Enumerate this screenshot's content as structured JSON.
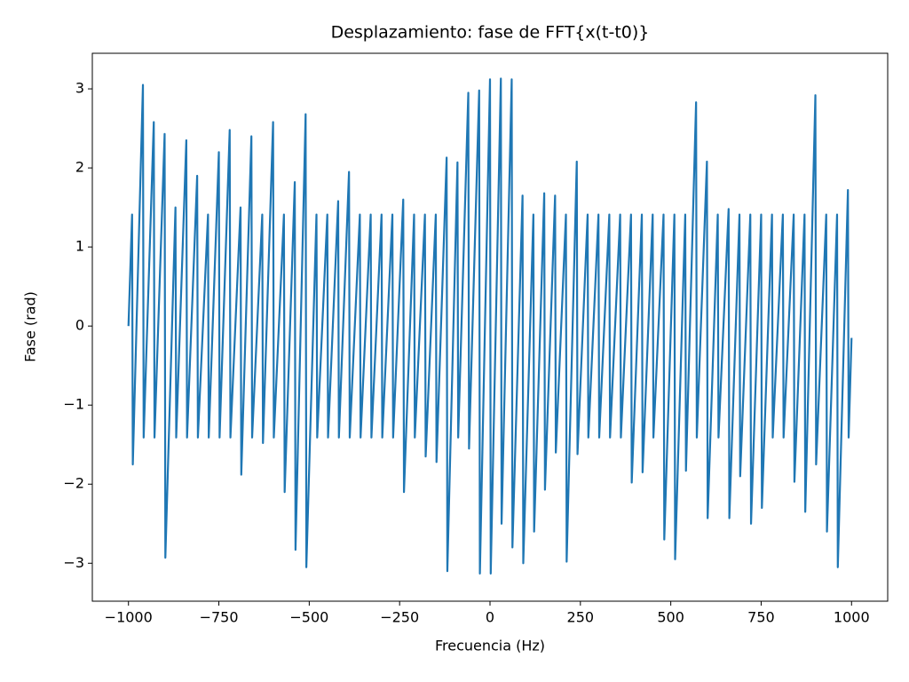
{
  "chart_data": {
    "type": "line",
    "title": "Desplazamiento: fase de FFT{x(t-t0)}",
    "x_label": "Frecuencia (Hz)",
    "y_label": "Fase (rad)",
    "xlim": [
      -1100,
      1100
    ],
    "ylim": [
      -3.48,
      3.45
    ],
    "xticks": [
      {
        "value": -1000,
        "label": "−1000"
      },
      {
        "value": -750,
        "label": "−750"
      },
      {
        "value": -500,
        "label": "−500"
      },
      {
        "value": -250,
        "label": "−250"
      },
      0,
      250,
      500,
      750,
      1000
    ],
    "yticks": [
      {
        "value": -3,
        "label": "−3"
      },
      {
        "value": -2,
        "label": "−2"
      },
      {
        "value": -1,
        "label": "−1"
      },
      0,
      1,
      2,
      3
    ],
    "grid": false,
    "series": [
      {
        "color": "#1f77b4",
        "x": [
          -1000,
          -990,
          -988,
          -960,
          -958,
          -930,
          -928,
          -900,
          -898,
          -870,
          -868,
          -840,
          -838,
          -810,
          -808,
          -780,
          -778,
          -750,
          -748,
          -720,
          -718,
          -690,
          -688,
          -660,
          -658,
          -630,
          -628,
          -600,
          -598,
          -570,
          -568,
          -540,
          -538,
          -510,
          -508,
          -480,
          -478,
          -450,
          -448,
          -420,
          -418,
          -390,
          -388,
          -360,
          -358,
          -330,
          -328,
          -300,
          -298,
          -270,
          -268,
          -240,
          -238,
          -210,
          -208,
          -180,
          -178,
          -150,
          -148,
          -120,
          -118,
          -90,
          -88,
          -60,
          -58,
          -30,
          -28,
          0,
          2,
          30,
          32,
          60,
          62,
          90,
          92,
          120,
          122,
          150,
          152,
          180,
          182,
          210,
          212,
          240,
          242,
          270,
          272,
          300,
          302,
          330,
          332,
          360,
          362,
          390,
          392,
          420,
          422,
          450,
          452,
          480,
          482,
          510,
          512,
          540,
          542,
          570,
          572,
          600,
          602,
          630,
          632,
          660,
          662,
          690,
          692,
          720,
          722,
          750,
          752,
          780,
          782,
          810,
          812,
          840,
          842,
          870,
          872,
          900,
          902,
          930,
          932,
          960,
          962,
          990,
          992,
          1000
        ],
        "values": [
          0,
          1.41,
          -1.75,
          3.05,
          -1.41,
          2.58,
          -1.41,
          2.43,
          -2.93,
          1.5,
          -1.41,
          2.35,
          -1.41,
          1.9,
          -1.41,
          1.41,
          -1.41,
          2.2,
          -1.41,
          2.48,
          -1.41,
          1.5,
          -1.88,
          2.4,
          -1.41,
          1.41,
          -1.48,
          2.58,
          -1.41,
          1.41,
          -2.1,
          1.82,
          -2.83,
          2.68,
          -3.05,
          1.41,
          -1.41,
          1.41,
          -1.41,
          1.58,
          -1.41,
          1.95,
          -1.41,
          1.41,
          -1.41,
          1.41,
          -1.41,
          1.41,
          -1.41,
          1.41,
          -1.41,
          1.6,
          -2.1,
          1.41,
          -1.41,
          1.41,
          -1.65,
          1.41,
          -1.72,
          2.13,
          -3.1,
          2.07,
          -1.41,
          2.95,
          -1.55,
          2.98,
          -3.13,
          3.12,
          -3.13,
          3.13,
          -2.5,
          3.12,
          -2.8,
          1.65,
          -3.0,
          1.41,
          -2.6,
          1.68,
          -2.07,
          1.65,
          -1.6,
          1.41,
          -2.98,
          2.08,
          -1.62,
          1.41,
          -1.41,
          1.41,
          -1.41,
          1.41,
          -1.41,
          1.41,
          -1.41,
          1.41,
          -1.98,
          1.41,
          -1.85,
          1.41,
          -1.41,
          1.41,
          -2.7,
          1.41,
          -2.95,
          1.41,
          -1.83,
          2.83,
          -1.41,
          2.08,
          -2.43,
          1.41,
          -1.41,
          1.48,
          -2.43,
          1.41,
          -1.9,
          1.41,
          -2.5,
          1.41,
          -2.3,
          1.41,
          -1.41,
          1.41,
          -1.41,
          1.41,
          -1.97,
          1.41,
          -2.35,
          2.92,
          -1.75,
          1.41,
          -2.6,
          1.41,
          -3.05,
          1.72,
          -1.41,
          -0.15
        ]
      }
    ]
  }
}
